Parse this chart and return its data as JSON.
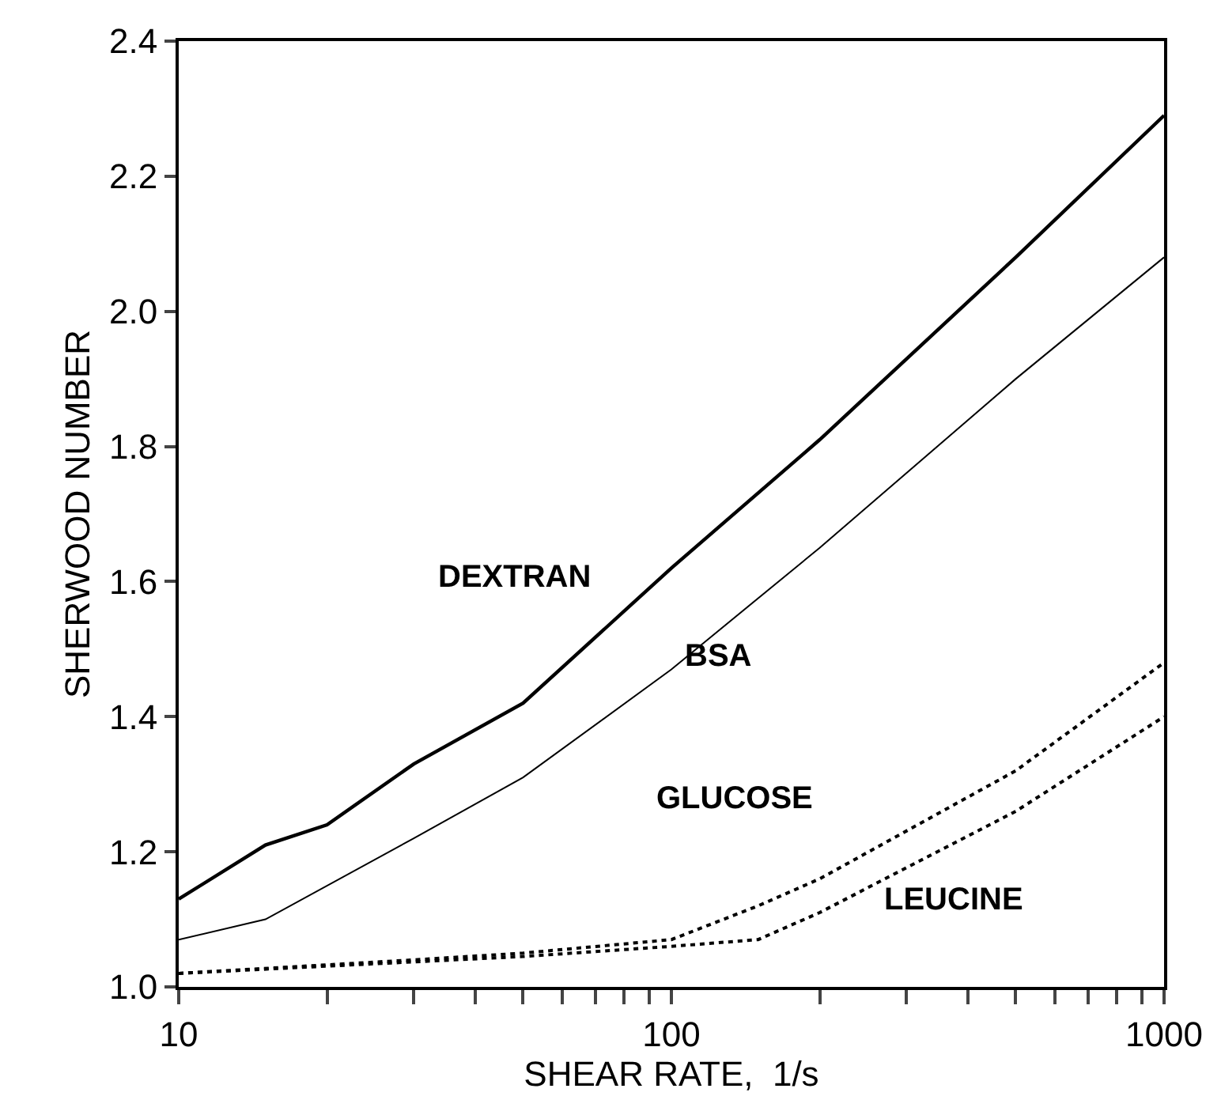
{
  "chart_data": {
    "type": "line",
    "xlabel": "SHEAR RATE,  1/s",
    "ylabel": "SHERWOOD NUMBER",
    "log": "x",
    "legend": false,
    "marker": "none",
    "xlim": [
      10,
      1000
    ],
    "ylim": [
      1.0,
      2.4
    ],
    "xticks": [
      10,
      {
        "value": 20,
        "label": null
      },
      {
        "value": 30,
        "label": null
      },
      {
        "value": 40,
        "label": null
      },
      {
        "value": 50,
        "label": null
      },
      {
        "value": 60,
        "label": null
      },
      {
        "value": 70,
        "label": null
      },
      {
        "value": 80,
        "label": null
      },
      {
        "value": 90,
        "label": null
      },
      100,
      {
        "value": 200,
        "label": null
      },
      {
        "value": 300,
        "label": null
      },
      {
        "value": 400,
        "label": null
      },
      {
        "value": 500,
        "label": null
      },
      {
        "value": 600,
        "label": null
      },
      {
        "value": 700,
        "label": null
      },
      {
        "value": 800,
        "label": null
      },
      {
        "value": 900,
        "label": null
      },
      1000
    ],
    "yticks": [
      {
        "value": 1.0,
        "label": "1.0"
      },
      1.2,
      1.4,
      1.6,
      1.8,
      {
        "value": 2.0,
        "label": "2.0"
      },
      2.2,
      2.4
    ],
    "series": [
      {
        "name": "DEXTRAN",
        "color": "#000000",
        "line_style": "solid",
        "x": [
          10,
          15,
          20,
          30,
          50,
          100,
          200,
          500,
          1000
        ],
        "values": [
          1.13,
          1.21,
          1.24,
          1.33,
          1.42,
          1.62,
          1.81,
          2.08,
          2.29
        ]
      },
      {
        "name": "BSA",
        "color": "#000000",
        "line_style": "solid",
        "x": [
          10,
          15,
          30,
          50,
          100,
          200,
          500,
          1000
        ],
        "values": [
          1.07,
          1.1,
          1.22,
          1.31,
          1.47,
          1.65,
          1.9,
          2.08
        ]
      },
      {
        "name": "GLUCOSE",
        "color": "#000000",
        "line_style": "dotted",
        "x": [
          10,
          30,
          50,
          100,
          150,
          200,
          500,
          1000
        ],
        "values": [
          1.02,
          1.04,
          1.05,
          1.07,
          1.12,
          1.16,
          1.32,
          1.48
        ]
      },
      {
        "name": "LEUCINE",
        "color": "#000000",
        "line_style": "dotted",
        "x": [
          10,
          50,
          100,
          150,
          200,
          500,
          1000
        ],
        "values": [
          1.02,
          1.045,
          1.06,
          1.07,
          1.11,
          1.26,
          1.4
        ]
      }
    ]
  }
}
